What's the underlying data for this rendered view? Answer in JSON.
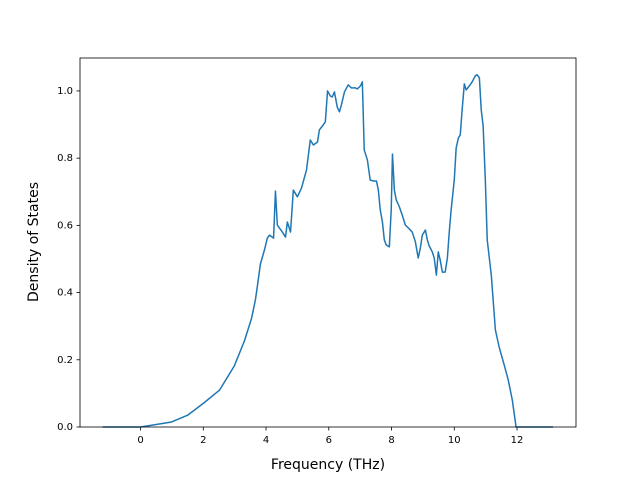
{
  "chart_data": {
    "type": "line",
    "xlabel": "Frequency (THz)",
    "ylabel": "Density of States",
    "x": [
      -1.21,
      0,
      0.99,
      1.5,
      2.01,
      2.52,
      2.99,
      3.31,
      3.54,
      3.66,
      3.73,
      3.82,
      3.95,
      4.04,
      4.11,
      4.24,
      4.3,
      4.36,
      4.52,
      4.62,
      4.68,
      4.78,
      4.87,
      5.0,
      5.13,
      5.29,
      5.41,
      5.51,
      5.64,
      5.7,
      5.8,
      5.89,
      5.96,
      6.05,
      6.11,
      6.18,
      6.27,
      6.34,
      6.4,
      6.5,
      6.62,
      6.72,
      6.85,
      6.91,
      7.01,
      7.07,
      7.13,
      7.23,
      7.32,
      7.42,
      7.52,
      7.58,
      7.64,
      7.71,
      7.77,
      7.83,
      7.93,
      7.99,
      8.03,
      8.09,
      8.15,
      8.25,
      8.34,
      8.44,
      8.54,
      8.6,
      8.66,
      8.76,
      8.85,
      8.92,
      8.98,
      9.08,
      9.14,
      9.2,
      9.3,
      9.36,
      9.43,
      9.49,
      9.55,
      9.62,
      9.71,
      9.78,
      9.84,
      9.9,
      10.0,
      10.06,
      10.13,
      10.19,
      10.25,
      10.32,
      10.38,
      10.48,
      10.57,
      10.67,
      10.73,
      10.8,
      10.86,
      10.92,
      10.99,
      11.05,
      11.18,
      11.31,
      11.43,
      11.59,
      11.72,
      11.85,
      11.97,
      13.15
    ],
    "y": [
      0,
      0,
      0.015,
      0.035,
      0.071,
      0.11,
      0.182,
      0.256,
      0.324,
      0.378,
      0.423,
      0.485,
      0.527,
      0.562,
      0.571,
      0.562,
      0.702,
      0.601,
      0.58,
      0.565,
      0.61,
      0.58,
      0.705,
      0.685,
      0.711,
      0.765,
      0.854,
      0.839,
      0.848,
      0.884,
      0.896,
      0.908,
      1.0,
      0.985,
      0.982,
      0.997,
      0.952,
      0.938,
      0.958,
      0.997,
      1.018,
      1.009,
      1.009,
      1.006,
      1.015,
      1.027,
      0.824,
      0.795,
      0.735,
      0.732,
      0.732,
      0.705,
      0.646,
      0.61,
      0.557,
      0.542,
      0.536,
      0.646,
      0.812,
      0.705,
      0.676,
      0.655,
      0.631,
      0.601,
      0.592,
      0.586,
      0.58,
      0.551,
      0.503,
      0.533,
      0.571,
      0.586,
      0.557,
      0.539,
      0.521,
      0.503,
      0.452,
      0.521,
      0.497,
      0.461,
      0.461,
      0.503,
      0.58,
      0.646,
      0.735,
      0.83,
      0.86,
      0.869,
      0.943,
      1.021,
      1.003,
      1.015,
      1.027,
      1.045,
      1.048,
      1.039,
      0.943,
      0.896,
      0.735,
      0.557,
      0.452,
      0.289,
      0.238,
      0.185,
      0.14,
      0.08,
      0,
      0
    ],
    "color": "#1f77b4",
    "xlim": [
      -1.93,
      13.88
    ],
    "xticks": [
      0,
      2,
      4,
      6,
      8,
      10,
      12
    ],
    "ylim": [
      0,
      1.098
    ],
    "yticks": [
      {
        "value": 0,
        "label": "0.0"
      },
      0.2,
      0.4,
      0.6,
      0.8,
      {
        "value": 1,
        "label": "1.0"
      }
    ]
  }
}
